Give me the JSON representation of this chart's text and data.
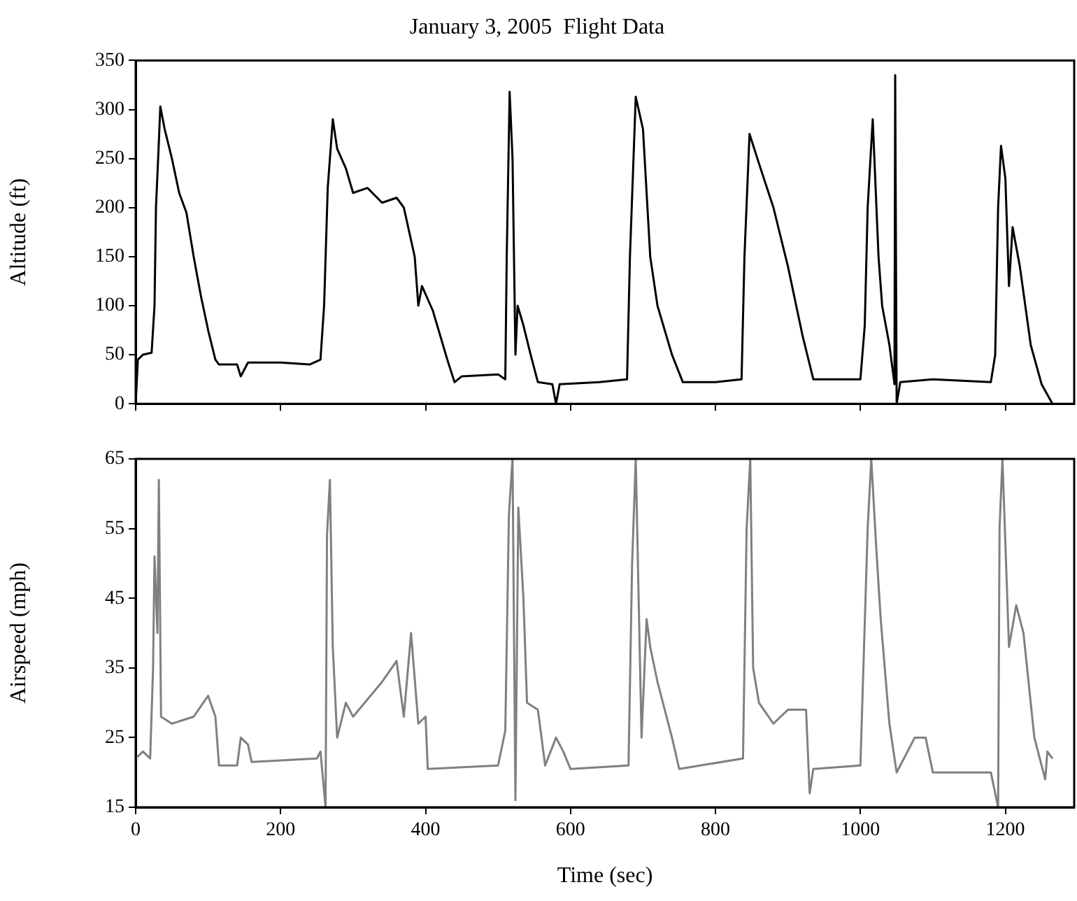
{
  "chart_data": [
    {
      "type": "line",
      "title": "January 3, 2005  Flight Data",
      "ylabel": "Altitude (ft)",
      "xlim": [
        0,
        1295
      ],
      "xticks": [
        0,
        200,
        400,
        600,
        800,
        1000,
        1200
      ],
      "ylim": [
        0,
        350
      ],
      "yticks": [
        0,
        50,
        100,
        150,
        200,
        250,
        300,
        350
      ],
      "tick_labels": "y",
      "grid": false,
      "legend": false,
      "marker": "none",
      "series": [
        {
          "color": "#000000",
          "x": [
            0,
            3,
            10,
            22,
            26,
            28,
            31,
            34,
            40,
            50,
            60,
            70,
            80,
            90,
            100,
            110,
            115,
            140,
            145,
            155,
            200,
            240,
            255,
            260,
            265,
            272,
            278,
            290,
            300,
            320,
            340,
            360,
            370,
            385,
            390,
            395,
            410,
            420,
            430,
            440,
            450,
            500,
            510,
            512,
            516,
            520,
            524,
            527,
            535,
            545,
            555,
            575,
            580,
            585,
            640,
            678,
            682,
            690,
            700,
            710,
            720,
            740,
            755,
            800,
            836,
            840,
            847,
            860,
            880,
            900,
            920,
            935,
            1000,
            1006,
            1010,
            1017,
            1025,
            1030,
            1040,
            1047,
            1048,
            1050,
            1055,
            1100,
            1180,
            1186,
            1190,
            1194,
            1200,
            1205,
            1210,
            1220,
            1235,
            1250,
            1265
          ],
          "values": [
            0,
            45,
            50,
            52,
            100,
            200,
            250,
            303,
            280,
            250,
            215,
            195,
            150,
            110,
            75,
            45,
            40,
            40,
            28,
            42,
            42,
            40,
            45,
            100,
            220,
            290,
            260,
            240,
            215,
            220,
            205,
            210,
            200,
            150,
            100,
            120,
            95,
            70,
            45,
            22,
            28,
            30,
            25,
            150,
            318,
            250,
            50,
            100,
            80,
            50,
            22,
            20,
            0,
            20,
            22,
            25,
            150,
            313,
            280,
            150,
            100,
            50,
            22,
            22,
            25,
            150,
            275,
            245,
            200,
            140,
            70,
            25,
            25,
            80,
            200,
            290,
            150,
            100,
            60,
            20,
            335,
            0,
            22,
            25,
            22,
            50,
            200,
            263,
            230,
            120,
            180,
            140,
            60,
            20,
            0
          ]
        }
      ]
    },
    {
      "type": "line",
      "xlabel": "Time (sec)",
      "ylabel": "Airspeed (mph)",
      "xlim": [
        0,
        1295
      ],
      "xticks": [
        0,
        200,
        400,
        600,
        800,
        1000,
        1200
      ],
      "ylim": [
        15,
        65
      ],
      "yticks": [
        15,
        25,
        35,
        45,
        55,
        65
      ],
      "grid": false,
      "legend": false,
      "marker": "none",
      "series": [
        {
          "color": "#808080",
          "x": [
            0,
            10,
            20,
            24,
            26,
            30,
            32,
            35,
            50,
            80,
            100,
            110,
            115,
            140,
            145,
            155,
            160,
            250,
            255,
            262,
            264,
            268,
            272,
            278,
            290,
            300,
            340,
            360,
            370,
            380,
            390,
            400,
            403,
            500,
            510,
            515,
            520,
            524,
            528,
            535,
            540,
            555,
            565,
            580,
            590,
            600,
            680,
            685,
            690,
            698,
            705,
            710,
            720,
            740,
            750,
            838,
            843,
            848,
            852,
            860,
            880,
            900,
            925,
            930,
            935,
            1000,
            1010,
            1015,
            1022,
            1028,
            1040,
            1050,
            1075,
            1090,
            1100,
            1180,
            1190,
            1192,
            1196,
            1205,
            1215,
            1225,
            1240,
            1255,
            1258,
            1265
          ],
          "values": [
            22,
            23,
            22,
            35,
            51,
            40,
            62,
            28,
            27,
            28,
            31,
            28,
            21,
            21,
            25,
            24,
            21.5,
            22,
            23,
            15,
            54,
            62,
            38,
            25,
            30,
            28,
            33,
            36,
            28,
            40,
            27,
            28,
            20.5,
            21,
            26,
            57,
            65,
            16,
            58,
            45,
            30,
            29,
            21,
            25,
            23,
            20.5,
            21,
            50,
            65,
            25,
            42,
            38,
            33,
            25,
            20.5,
            22,
            55,
            65,
            35,
            30,
            27,
            29,
            29,
            17,
            20.5,
            21,
            55,
            65,
            52,
            42,
            27,
            20,
            25,
            25,
            20,
            20,
            15,
            55,
            65,
            38,
            44,
            40,
            25,
            19,
            23,
            22
          ]
        }
      ]
    }
  ]
}
